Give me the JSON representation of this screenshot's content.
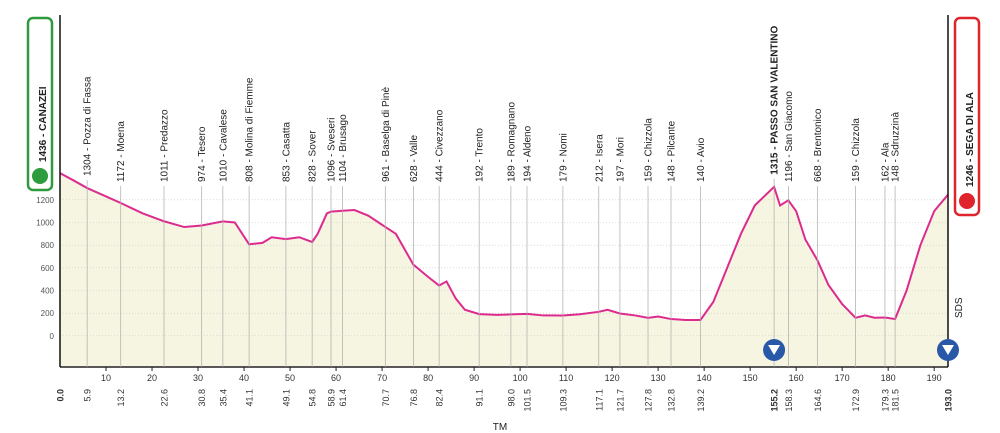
{
  "chart_data": {
    "type": "area",
    "xlim": [
      0,
      193
    ],
    "ylim": [
      -275,
      2875
    ],
    "xticks": [
      10,
      20,
      30,
      40,
      50,
      60,
      70,
      80,
      90,
      100,
      110,
      120,
      130,
      140,
      150,
      160,
      170,
      180,
      190
    ],
    "yticks": [
      0,
      200,
      400,
      600,
      800,
      1000,
      1200
    ],
    "grid": true,
    "profile": {
      "color": "#dd2a8f",
      "fill": "#f6f5e2",
      "x": [
        0,
        3,
        5.9,
        10,
        13.2,
        18,
        22.6,
        27,
        30.8,
        35.4,
        38,
        41.1,
        44,
        46,
        49.1,
        52,
        54.8,
        56,
        58,
        58.9,
        61.4,
        64,
        67,
        70.7,
        73,
        76.8,
        80,
        82.4,
        84,
        86,
        88,
        91.1,
        95,
        98,
        101.5,
        105,
        109.3,
        113,
        117.1,
        119,
        121.7,
        125,
        127.8,
        130,
        132.8,
        136,
        139.2,
        142,
        145,
        148,
        151,
        155.2,
        156.5,
        158.3,
        160,
        162,
        164.6,
        167,
        170,
        172.9,
        175,
        177,
        179.3,
        181.5,
        184,
        187,
        190,
        193
      ],
      "values": [
        1436,
        1370,
        1304,
        1230,
        1172,
        1080,
        1011,
        960,
        974,
        1010,
        1000,
        808,
        820,
        870,
        853,
        870,
        828,
        900,
        1080,
        1096,
        1104,
        1110,
        1060,
        961,
        900,
        628,
        520,
        444,
        480,
        330,
        230,
        192,
        185,
        189,
        194,
        180,
        179,
        190,
        212,
        230,
        197,
        180,
        159,
        170,
        148,
        140,
        140,
        300,
        600,
        900,
        1150,
        1315,
        1150,
        1196,
        1100,
        850,
        668,
        450,
        280,
        159,
        180,
        160,
        162,
        148,
        400,
        800,
        1100,
        1246
      ]
    },
    "start": {
      "x": {
        "value": 0,
        "label": "0.0"
      },
      "value": 1436,
      "value_label": "1436 - CANAZEI",
      "color": "#2e9b3e"
    },
    "finish": {
      "x": {
        "value": 193,
        "label": "193.0"
      },
      "value": 1246,
      "value_label": "1246 - SEGA DI ALA",
      "color": "#e0242c"
    },
    "summit": {
      "x": 155.2,
      "value": 1315,
      "value_label": "1315 - PASSO SAN VALENTINO"
    },
    "waypoints": {
      "x": [
        5.9,
        13.2,
        22.6,
        30.8,
        35.4,
        41.1,
        49.1,
        54.8,
        58.9,
        61.4,
        70.7,
        76.8,
        82.4,
        91.1,
        {
          "value": 98,
          "label": "98.0"
        },
        101.5,
        109.3,
        117.1,
        121.7,
        127.8,
        132.8,
        139.2,
        158.3,
        164.6,
        172.9,
        179.3,
        181.5
      ],
      "values": [
        1304,
        1172,
        1011,
        974,
        1010,
        808,
        853,
        828,
        1096,
        1104,
        961,
        628,
        444,
        192,
        189,
        194,
        179,
        212,
        197,
        159,
        148,
        140,
        1196,
        668,
        159,
        162,
        148
      ],
      "value_labels": [
        "1304 - Pozza di Fassa",
        "1172 - Moena",
        "1011 - Predazzo",
        "974 - Tesero",
        "1010 - Cavalese",
        "808 - Molina di Fiemme",
        "853 - Casatta",
        "828 - Sover",
        "1096 - Sveseri",
        "1104 - Brusago",
        "961 - Baselga di Pinè",
        "628 - Valle",
        "444 - Civezzano",
        "192 - Trento",
        "189 - Romagnano",
        "194 - Aldeno",
        "179 - Nomi",
        "212 - Isera",
        "197 - Mori",
        "159 - Chizzola",
        "148 - Pilcante",
        "140 - Avio",
        "1196 - San Giacomo",
        "668 - Brentonico",
        "159 - Chizzola",
        "162 - Ala",
        "148 - Sdruzzinà"
      ]
    },
    "annotations": [
      "SDS",
      "TM"
    ]
  }
}
